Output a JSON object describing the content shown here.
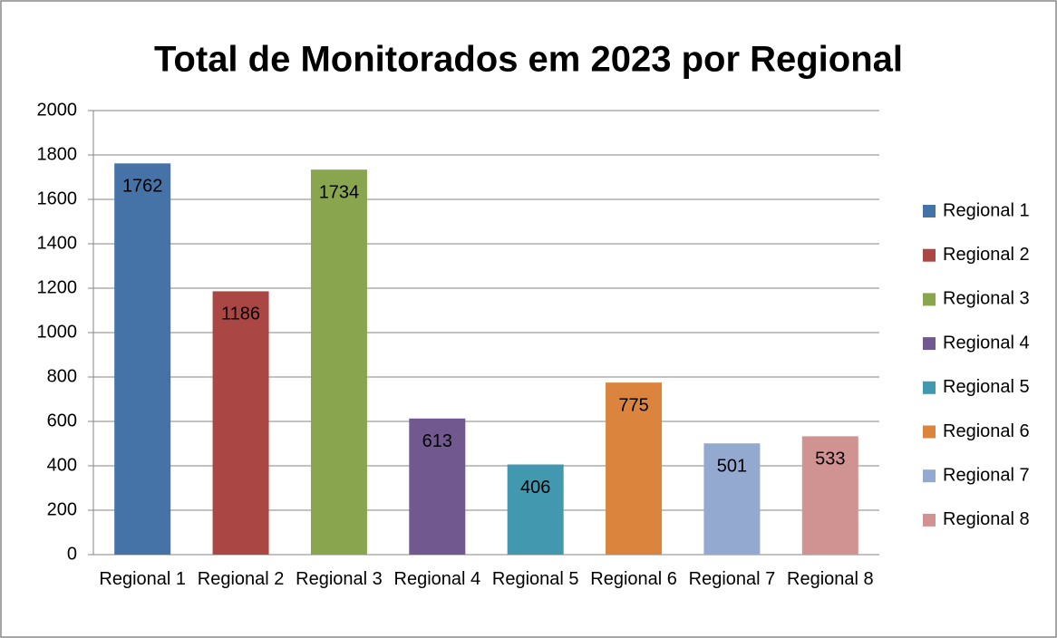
{
  "chart_data": {
    "type": "bar",
    "title": "Total de Monitorados em 2023 por Regional",
    "categories": [
      "Regional 1",
      "Regional 2",
      "Regional 3",
      "Regional 4",
      "Regional 5",
      "Regional 6",
      "Regional 7",
      "Regional 8"
    ],
    "values": [
      1762,
      1186,
      1734,
      613,
      406,
      775,
      501,
      533
    ],
    "colors": [
      "#4572a7",
      "#aa4643",
      "#89a54e",
      "#71588f",
      "#4198af",
      "#db843d",
      "#93a9cf",
      "#d19392"
    ],
    "ylim": [
      0,
      2000
    ],
    "yticks": [
      0,
      200,
      400,
      600,
      800,
      1000,
      1200,
      1400,
      1600,
      1800,
      2000
    ],
    "grid": true,
    "legend": "right"
  }
}
